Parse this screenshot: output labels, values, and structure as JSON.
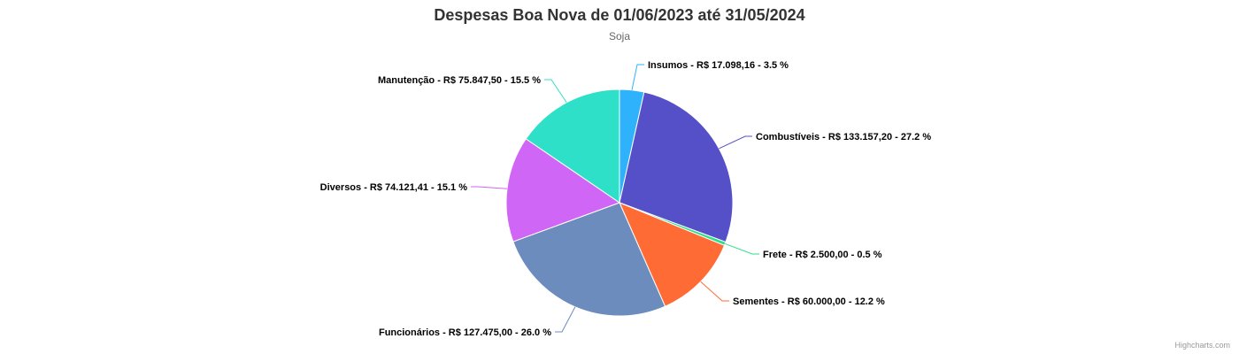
{
  "chart_data": {
    "type": "pie",
    "title": "Despesas Boa Nova de 01/06/2023 até 31/05/2024",
    "subtitle": "Soja",
    "slices": [
      {
        "name": "Insumos",
        "value": 17098.16,
        "value_label": "R$ 17.098,16",
        "percent": 3.5,
        "percent_label": "3.5 %",
        "color": "#2eb2fb"
      },
      {
        "name": "Combustíveis",
        "value": 133157.2,
        "value_label": "R$ 133.157,20",
        "percent": 27.2,
        "percent_label": "27.2 %",
        "color": "#5550c8"
      },
      {
        "name": "Frete",
        "value": 2500.0,
        "value_label": "R$ 2.500,00",
        "percent": 0.5,
        "percent_label": "0.5 %",
        "color": "#2ede8a"
      },
      {
        "name": "Sementes",
        "value": 60000.0,
        "value_label": "R$ 60.000,00",
        "percent": 12.2,
        "percent_label": "12.2 %",
        "color": "#ff6b35"
      },
      {
        "name": "Funcionários",
        "value": 127475.0,
        "value_label": "R$ 127.475,00",
        "percent": 26.0,
        "percent_label": "26.0 %",
        "color": "#6b8cbc"
      },
      {
        "name": "Diversos",
        "value": 74121.41,
        "value_label": "R$ 74.121,41",
        "percent": 15.1,
        "percent_label": "15.1 %",
        "color": "#d066f5"
      },
      {
        "name": "Manutenção",
        "value": 75847.5,
        "value_label": "R$ 75.847,50",
        "percent": 15.5,
        "percent_label": "15.5 %",
        "color": "#2ee0c8"
      }
    ]
  },
  "credits": "Highcharts.com"
}
